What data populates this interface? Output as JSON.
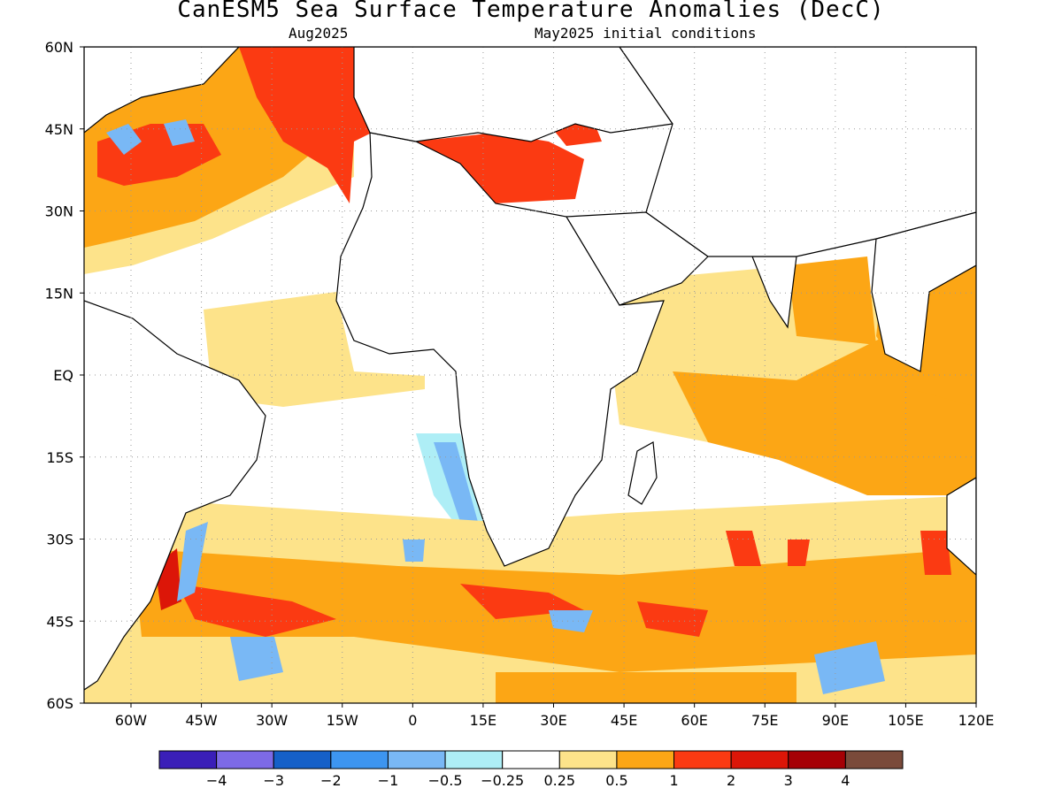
{
  "title": "CanESM5 Sea Surface Temperature Anomalies (DecC)",
  "valid_month": "Aug2025",
  "init_note": "May2025 initial conditions",
  "lat_ticks": [
    "60N",
    "45N",
    "30N",
    "15N",
    "EQ",
    "15S",
    "30S",
    "45S",
    "60S"
  ],
  "lon_ticks": [
    "60W",
    "45W",
    "30W",
    "15W",
    "0",
    "15E",
    "30E",
    "45E",
    "60E",
    "75E",
    "90E",
    "105E",
    "120E"
  ],
  "colorbar": {
    "colors": [
      "#3a1fb8",
      "#7d6ae6",
      "#1560c8",
      "#3d95f0",
      "#79b8f5",
      "#aeeef6",
      "#ffffff",
      "#fde38a",
      "#fca615",
      "#fb3a12",
      "#dc1608",
      "#a50005",
      "#7a4a3a"
    ],
    "labels": [
      "−4",
      "−3",
      "−2",
      "−1",
      "−0.5",
      "−0.25",
      "0.25",
      "0.5",
      "1",
      "2",
      "3",
      "4"
    ]
  },
  "colors": {
    "land_bg": "#ffffff",
    "coast": "#000000",
    "grid": "#9a9a9a"
  }
}
